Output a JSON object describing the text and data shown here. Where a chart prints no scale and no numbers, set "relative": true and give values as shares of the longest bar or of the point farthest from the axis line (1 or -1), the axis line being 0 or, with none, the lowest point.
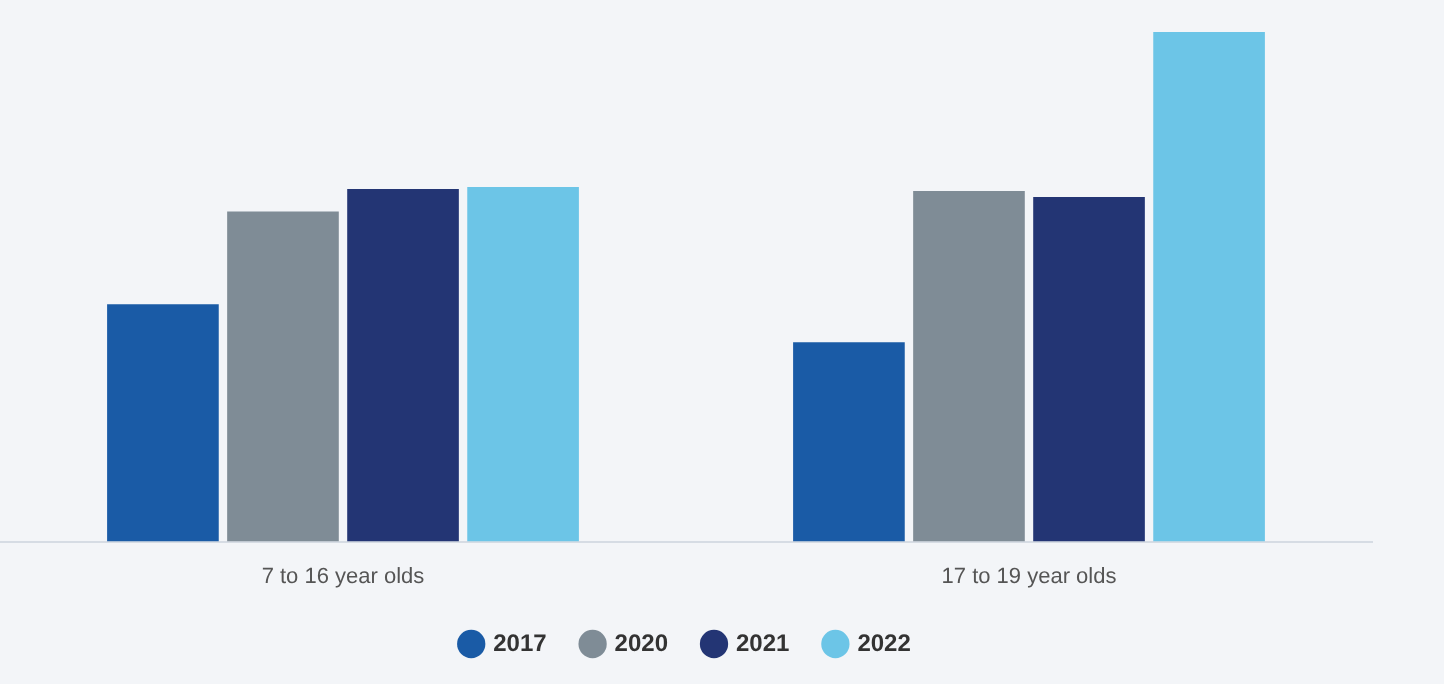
{
  "chart_data": {
    "type": "bar",
    "relative": true,
    "legend": "bottom",
    "categories": [
      "7 to 16 year olds",
      "17 to 19 year olds"
    ],
    "series": [
      {
        "name": "2017",
        "color": "#1a5ba6",
        "values": [
          0.466,
          0.391
        ]
      },
      {
        "name": "2020",
        "color": "#7f8c96",
        "values": [
          0.648,
          0.688
        ]
      },
      {
        "name": "2021",
        "color": "#233574",
        "values": [
          0.692,
          0.676
        ]
      },
      {
        "name": "2022",
        "color": "#6cc5e7",
        "values": [
          0.696,
          1
        ]
      }
    ]
  }
}
